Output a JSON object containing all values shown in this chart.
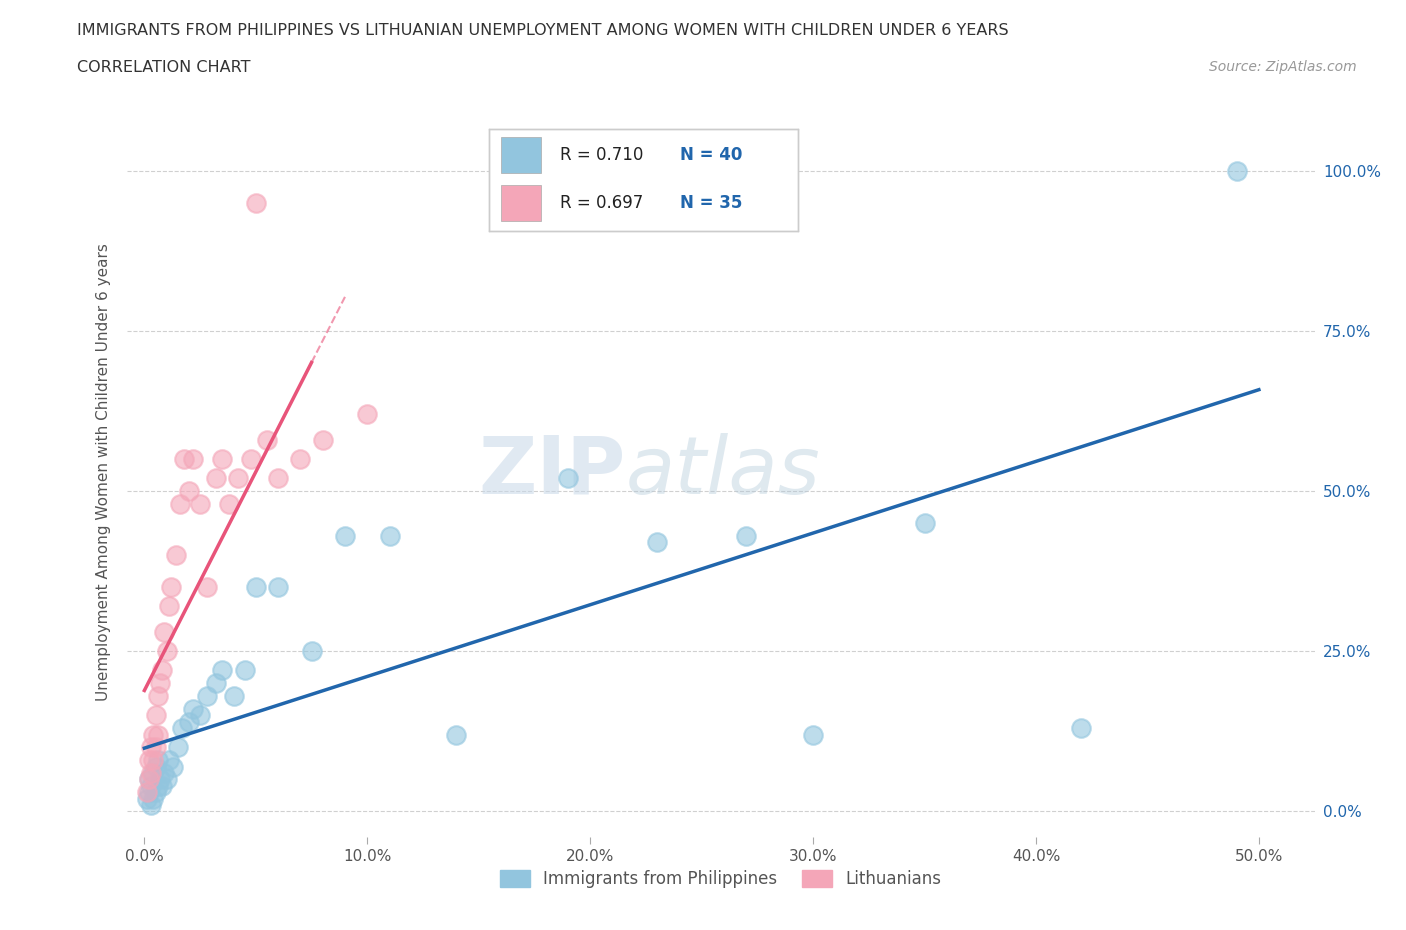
{
  "title_line1": "IMMIGRANTS FROM PHILIPPINES VS LITHUANIAN UNEMPLOYMENT AMONG WOMEN WITH CHILDREN UNDER 6 YEARS",
  "title_line2": "CORRELATION CHART",
  "source_text": "Source: ZipAtlas.com",
  "ylabel": "Unemployment Among Women with Children Under 6 years",
  "x_tick_values": [
    0.0,
    0.1,
    0.2,
    0.3,
    0.4,
    0.5
  ],
  "y_tick_values": [
    0.0,
    0.25,
    0.5,
    0.75,
    1.0
  ],
  "xlim": [
    -0.008,
    0.525
  ],
  "ylim": [
    -0.04,
    1.1
  ],
  "R_blue": 0.71,
  "N_blue": 40,
  "R_pink": 0.697,
  "N_pink": 35,
  "blue_color": "#92c5de",
  "pink_color": "#f4a6b8",
  "blue_line_color": "#2166ac",
  "pink_line_color": "#e8547a",
  "watermark_part1": "ZIP",
  "watermark_part2": "atlas",
  "legend_blue_label": "Immigrants from Philippines",
  "legend_pink_label": "Lithuanians",
  "blue_x": [
    0.001,
    0.002,
    0.002,
    0.003,
    0.003,
    0.004,
    0.004,
    0.005,
    0.005,
    0.006,
    0.006,
    0.007,
    0.008,
    0.009,
    0.01,
    0.011,
    0.013,
    0.015,
    0.017,
    0.02,
    0.022,
    0.025,
    0.028,
    0.032,
    0.035,
    0.04,
    0.045,
    0.05,
    0.06,
    0.075,
    0.09,
    0.11,
    0.14,
    0.19,
    0.23,
    0.27,
    0.3,
    0.35,
    0.42,
    0.49
  ],
  "blue_y": [
    0.02,
    0.03,
    0.05,
    0.01,
    0.04,
    0.06,
    0.02,
    0.03,
    0.07,
    0.04,
    0.08,
    0.05,
    0.04,
    0.06,
    0.05,
    0.08,
    0.07,
    0.1,
    0.13,
    0.14,
    0.16,
    0.15,
    0.18,
    0.2,
    0.22,
    0.18,
    0.22,
    0.35,
    0.35,
    0.25,
    0.43,
    0.43,
    0.12,
    0.52,
    0.42,
    0.43,
    0.12,
    0.45,
    0.13,
    1.0
  ],
  "pink_x": [
    0.001,
    0.002,
    0.002,
    0.003,
    0.003,
    0.004,
    0.004,
    0.005,
    0.005,
    0.006,
    0.006,
    0.007,
    0.008,
    0.009,
    0.01,
    0.011,
    0.012,
    0.014,
    0.016,
    0.018,
    0.02,
    0.022,
    0.025,
    0.028,
    0.032,
    0.035,
    0.038,
    0.042,
    0.048,
    0.055,
    0.06,
    0.07,
    0.08,
    0.1,
    0.05
  ],
  "pink_y": [
    0.03,
    0.05,
    0.08,
    0.06,
    0.1,
    0.08,
    0.12,
    0.1,
    0.15,
    0.12,
    0.18,
    0.2,
    0.22,
    0.28,
    0.25,
    0.32,
    0.35,
    0.4,
    0.48,
    0.55,
    0.5,
    0.55,
    0.48,
    0.35,
    0.52,
    0.55,
    0.48,
    0.52,
    0.55,
    0.58,
    0.52,
    0.55,
    0.58,
    0.62,
    0.95
  ],
  "grid_color": "#d0d0d0",
  "background_color": "#ffffff"
}
